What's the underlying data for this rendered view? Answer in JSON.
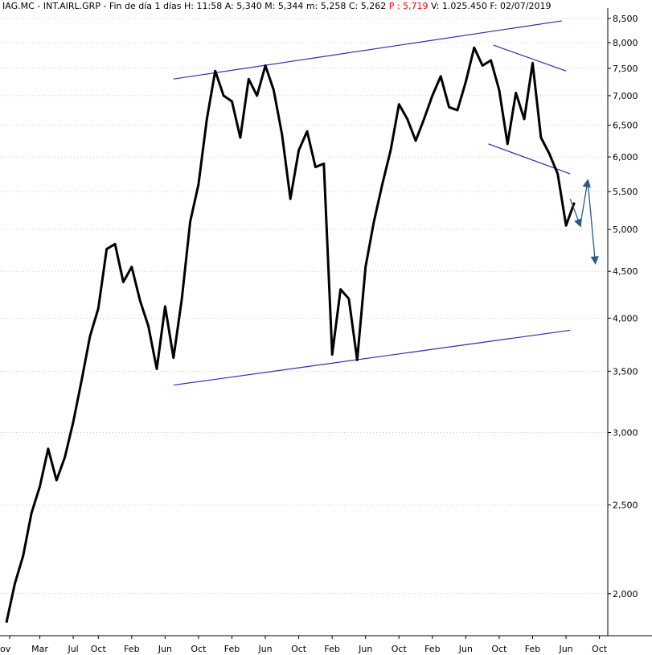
{
  "header": {
    "symbol": "IAG.MC - INT.AIRL.GRP",
    "period": "Fin de día 1 días",
    "hour": "H: 11:58",
    "open": "A: 5,340",
    "high": "M: 5,344",
    "low": "m: 5,258",
    "close": "C: 5,262",
    "pointer": "P : 5,719",
    "volume": "V: 1.025.450",
    "date": "F: 02/07/2019"
  },
  "colors": {
    "price": "#000000",
    "trendline": "#2b2bbf",
    "projection": "#2a5a8a",
    "grid": "#c8c8c8",
    "pointer_text": "#ff0000"
  },
  "chart_data": {
    "type": "line",
    "title": "",
    "y_scale": "log",
    "ylim": [
      1.75,
      8.6
    ],
    "grid": "dotted horizontal",
    "y_ticks": [
      "2,000",
      "2,500",
      "3,000",
      "3,500",
      "4,000",
      "4,500",
      "5,000",
      "5,500",
      "6,000",
      "6,500",
      "7,000",
      "7,500",
      "8,000",
      "8,500"
    ],
    "y_tick_values": [
      2.0,
      2.5,
      3.0,
      3.5,
      4.0,
      4.5,
      5.0,
      5.5,
      6.0,
      6.5,
      7.0,
      7.5,
      8.0,
      8.5
    ],
    "x_ticks": [
      "ov",
      "Mar",
      "Jul",
      "Oct",
      "Feb",
      "Jun",
      "Oct",
      "Feb",
      "Jun",
      "Oct",
      "Feb",
      "Jun",
      "Oct",
      "Feb",
      "Jun",
      "Oct",
      "Feb",
      "Jun",
      "Oct"
    ],
    "x_tick_month_index": [
      0,
      4,
      8,
      11,
      15,
      19,
      23,
      27,
      31,
      35,
      39,
      43,
      47,
      51,
      55,
      59,
      63,
      67,
      71
    ],
    "x_range_months": [
      0,
      72
    ],
    "series": [
      {
        "values": [
          [
            0,
            1.86
          ],
          [
            1,
            2.05
          ],
          [
            2,
            2.2
          ],
          [
            3,
            2.45
          ],
          [
            4,
            2.62
          ],
          [
            5,
            2.88
          ],
          [
            6,
            2.66
          ],
          [
            7,
            2.82
          ],
          [
            8,
            3.08
          ],
          [
            9,
            3.42
          ],
          [
            10,
            3.82
          ],
          [
            11,
            4.1
          ],
          [
            12,
            4.76
          ],
          [
            13,
            4.82
          ],
          [
            14,
            4.38
          ],
          [
            15,
            4.55
          ],
          [
            16,
            4.18
          ],
          [
            17,
            3.92
          ],
          [
            18,
            3.52
          ],
          [
            19,
            4.12
          ],
          [
            20,
            3.62
          ],
          [
            21,
            4.2
          ],
          [
            22,
            5.1
          ],
          [
            23,
            5.6
          ],
          [
            24,
            6.6
          ],
          [
            25,
            7.45
          ],
          [
            26,
            7.0
          ],
          [
            27,
            6.9
          ],
          [
            28,
            6.3
          ],
          [
            29,
            7.3
          ],
          [
            30,
            7.0
          ],
          [
            31,
            7.55
          ],
          [
            32,
            7.1
          ],
          [
            33,
            6.35
          ],
          [
            34,
            5.4
          ],
          [
            35,
            6.1
          ],
          [
            36,
            6.4
          ],
          [
            37,
            5.85
          ],
          [
            38,
            5.9
          ],
          [
            39,
            3.65
          ],
          [
            40,
            4.3
          ],
          [
            41,
            4.2
          ],
          [
            42,
            3.6
          ],
          [
            43,
            4.55
          ],
          [
            44,
            5.1
          ],
          [
            45,
            5.6
          ],
          [
            46,
            6.1
          ],
          [
            47,
            6.85
          ],
          [
            48,
            6.6
          ],
          [
            49,
            6.25
          ],
          [
            50,
            6.6
          ],
          [
            51,
            7.0
          ],
          [
            52,
            7.35
          ],
          [
            53,
            6.8
          ],
          [
            54,
            6.75
          ],
          [
            55,
            7.25
          ],
          [
            56,
            7.9
          ],
          [
            57,
            7.55
          ],
          [
            58,
            7.65
          ],
          [
            59,
            7.1
          ],
          [
            60,
            6.2
          ],
          [
            61,
            7.05
          ],
          [
            62,
            6.6
          ],
          [
            63,
            7.6
          ],
          [
            64,
            6.3
          ],
          [
            65,
            6.05
          ],
          [
            66,
            5.75
          ],
          [
            67,
            5.05
          ],
          [
            68,
            5.35
          ]
        ]
      }
    ],
    "trendlines": [
      {
        "from": [
          20,
          7.3
        ],
        "to": [
          66.5,
          8.45
        ]
      },
      {
        "from": [
          20,
          3.38
        ],
        "to": [
          67.5,
          3.88
        ]
      },
      {
        "from": [
          58.3,
          7.95
        ],
        "to": [
          67,
          7.45
        ]
      },
      {
        "from": [
          57.7,
          6.2
        ],
        "to": [
          67.5,
          5.75
        ]
      }
    ],
    "projection": [
      [
        67.5,
        5.4
      ],
      [
        68.7,
        5.05
      ],
      [
        69.6,
        5.65
      ],
      [
        70.5,
        4.6
      ]
    ]
  }
}
